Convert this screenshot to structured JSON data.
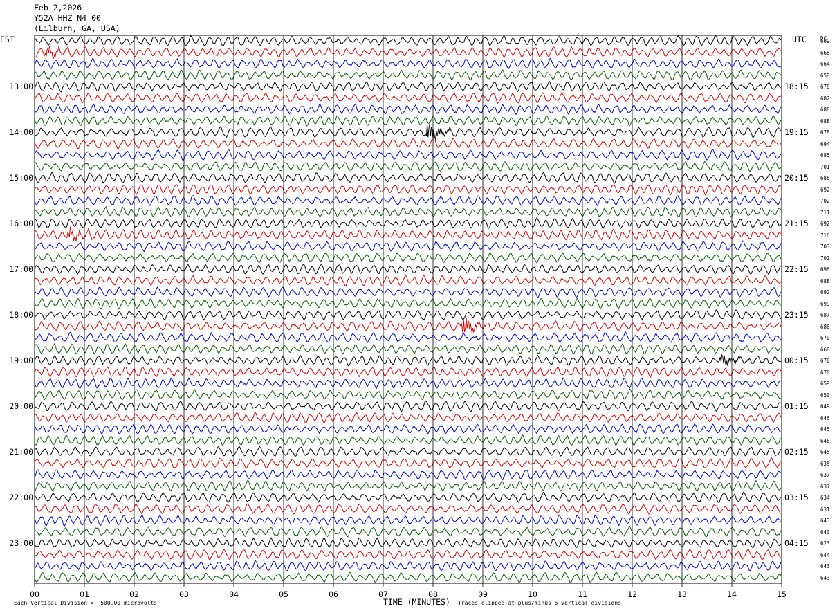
{
  "header": {
    "date": "Feb 2,2026",
    "station": "Y52A HHZ N4 00",
    "location": "(Lilburn, GA, USA)"
  },
  "left_tz": "EST",
  "right_tz": "UTC",
  "dc_label": "DC",
  "footer": {
    "scale": "Each Vertical Division =  500.00 microvolts",
    "xlabel": "TIME (MINUTES)",
    "clip": "Traces clipped at plus/minus 5 vertical divisions"
  },
  "colors": {
    "trace": [
      "#000000",
      "#e00000",
      "#0000d0",
      "#006000"
    ],
    "grid": "#000000"
  },
  "chart_data": {
    "type": "line",
    "subtype": "helicorder",
    "xlabel": "TIME (MINUTES)",
    "xlim": [
      0,
      15
    ],
    "x_ticks": [
      "00",
      "01",
      "02",
      "03",
      "04",
      "05",
      "06",
      "07",
      "08",
      "09",
      "10",
      "11",
      "12",
      "13",
      "14",
      "15"
    ],
    "left_hour_labels": [
      "13:00",
      "14:00",
      "15:00",
      "16:00",
      "17:00",
      "18:00",
      "19:00",
      "20:00",
      "21:00",
      "22:00",
      "23:00"
    ],
    "right_hour_labels": [
      "18:15",
      "19:15",
      "20:15",
      "21:15",
      "22:15",
      "23:15",
      "00:15",
      "01:15",
      "02:15",
      "03:15",
      "04:15"
    ],
    "dc_offsets": [
      669,
      666,
      664,
      658,
      678,
      682,
      688,
      688,
      678,
      694,
      685,
      701,
      686,
      692,
      702,
      711,
      692,
      716,
      703,
      702,
      696,
      688,
      692,
      699,
      687,
      686,
      670,
      668,
      670,
      670,
      659,
      650,
      649,
      646,
      645,
      646,
      645,
      635,
      637,
      637,
      634,
      631,
      643,
      640,
      623,
      644,
      643,
      643
    ],
    "events": [
      {
        "trace": 1,
        "minute": 0.25,
        "amp": 0.9
      },
      {
        "trace": 8,
        "minute": 7.9,
        "amp": 2.2
      },
      {
        "trace": 17,
        "minute": 0.7,
        "amp": 1.3
      },
      {
        "trace": 25,
        "minute": 8.6,
        "amp": 1.8
      },
      {
        "trace": 28,
        "minute": 13.8,
        "amp": 1.2
      }
    ]
  }
}
